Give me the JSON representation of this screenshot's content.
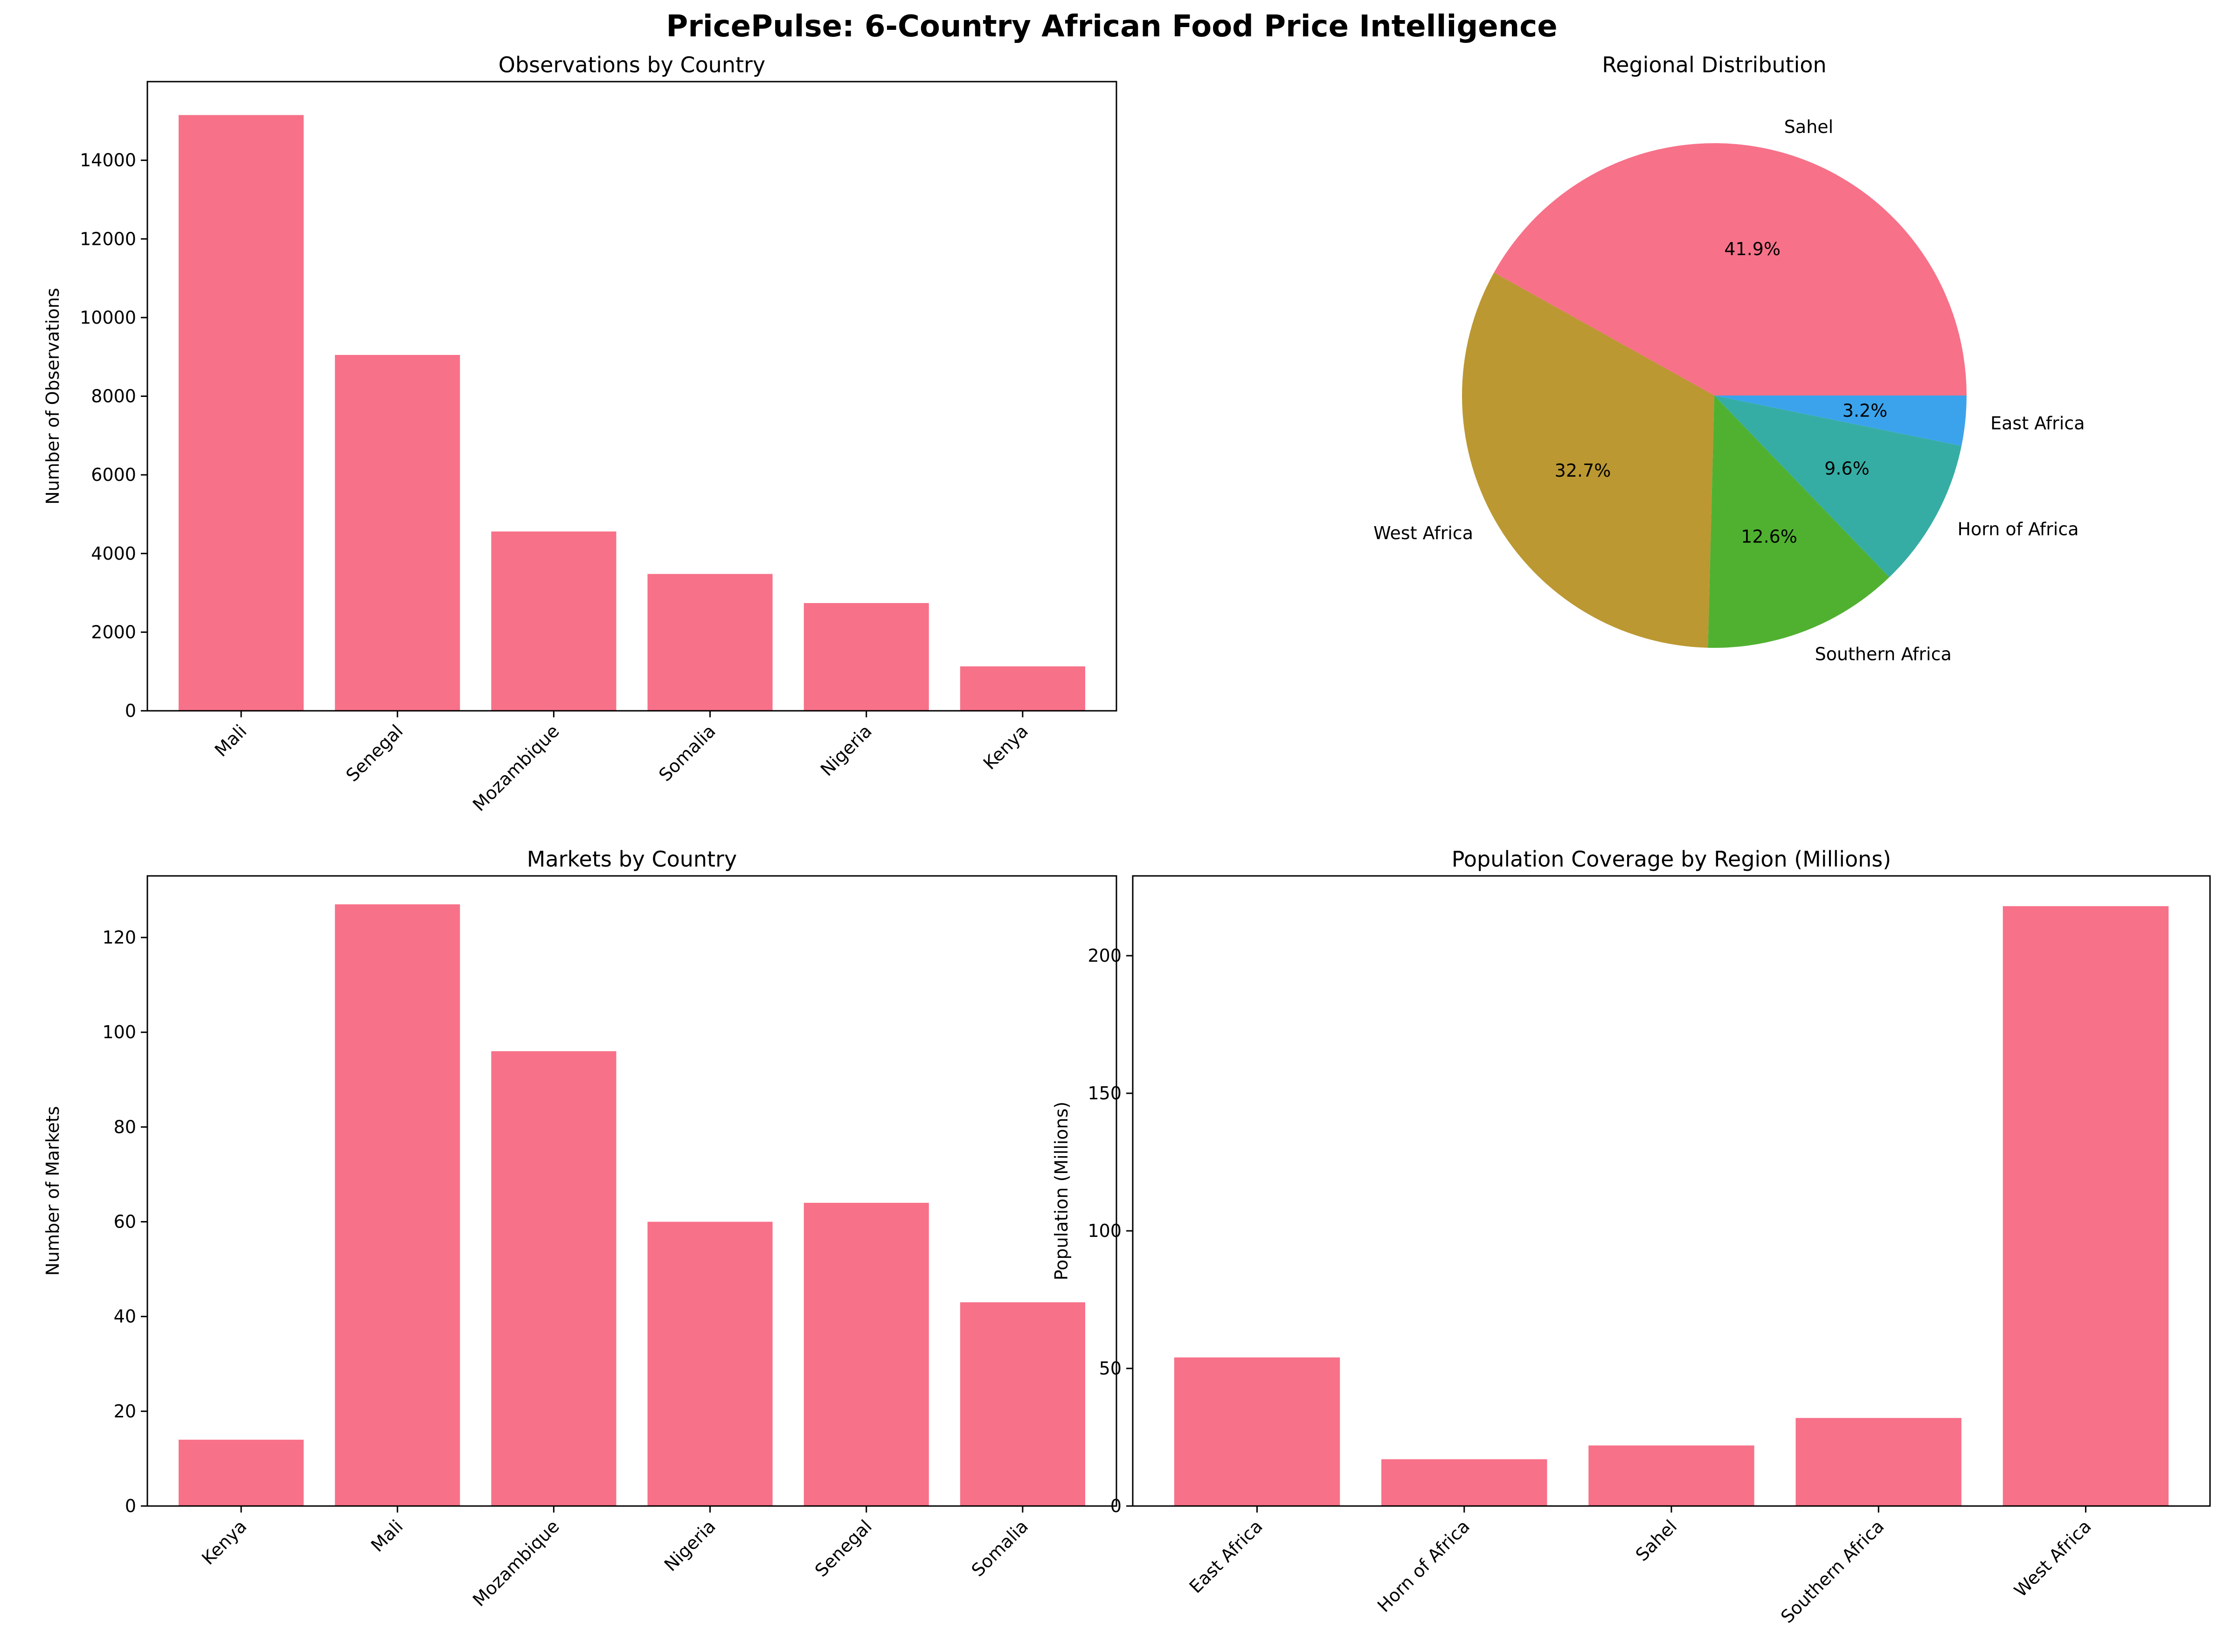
{
  "suptitle": "PricePulse: 6-Country African Food Price Intelligence",
  "chart_data": [
    {
      "type": "bar",
      "title": "Observations by Country",
      "xlabel": "",
      "ylabel": "Number of Observations",
      "categories": [
        "Mali",
        "Senegal",
        "Mozambique",
        "Somalia",
        "Nigeria",
        "Kenya"
      ],
      "values": [
        15150,
        9050,
        4560,
        3480,
        2740,
        1130
      ],
      "ylim": [
        0,
        16000
      ],
      "yticks": [
        0,
        2000,
        4000,
        6000,
        8000,
        10000,
        12000,
        14000
      ],
      "color": "#f77189"
    },
    {
      "type": "pie",
      "title": "Regional Distribution",
      "labels": [
        "Sahel",
        "West Africa",
        "Southern Africa",
        "Horn of Africa",
        "East Africa"
      ],
      "values": [
        41.9,
        32.7,
        12.6,
        9.6,
        3.2
      ],
      "autopct": [
        "41.9%",
        "32.7%",
        "12.6%",
        "9.6%",
        "3.2%"
      ],
      "colors": [
        "#f77189",
        "#bb9832",
        "#50b131",
        "#36ada4",
        "#3ba3ec"
      ]
    },
    {
      "type": "bar",
      "title": "Markets by Country",
      "xlabel": "",
      "ylabel": "Number of Markets",
      "categories": [
        "Kenya",
        "Mali",
        "Mozambique",
        "Nigeria",
        "Senegal",
        "Somalia"
      ],
      "values": [
        14,
        127,
        96,
        60,
        64,
        43
      ],
      "ylim": [
        0,
        133
      ],
      "yticks": [
        0,
        20,
        40,
        60,
        80,
        100,
        120
      ],
      "color": "#f77189"
    },
    {
      "type": "bar",
      "title": "Population Coverage by Region (Millions)",
      "xlabel": "",
      "ylabel": "Population (Millions)",
      "categories": [
        "East Africa",
        "Horn of Africa",
        "Sahel",
        "Southern Africa",
        "West Africa"
      ],
      "values": [
        54,
        17,
        22,
        32,
        218
      ],
      "ylim": [
        0,
        229
      ],
      "yticks": [
        0,
        50,
        100,
        150,
        200
      ],
      "color": "#f77189"
    }
  ]
}
